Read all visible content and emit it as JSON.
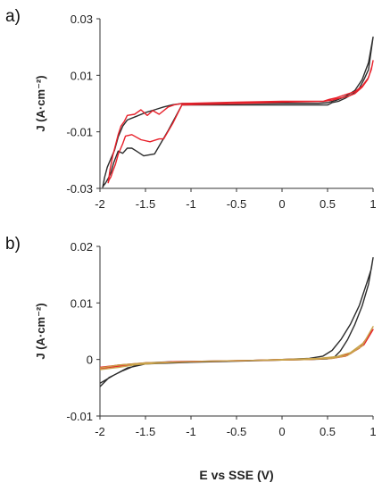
{
  "panels": [
    {
      "label": "a)"
    },
    {
      "label": "b)"
    }
  ],
  "shared_xlabel": "E vs SSE (V)",
  "chart_data": [
    {
      "type": "line",
      "panel": "a)",
      "xlabel": "",
      "ylabel": "J (A·cm⁻²)",
      "xlim": [
        -2,
        1
      ],
      "ylim": [
        -0.03,
        0.03
      ],
      "xticks": [
        -2,
        -1.5,
        -1,
        -0.5,
        0,
        0.5,
        1
      ],
      "xtick_labels": [
        "-2",
        "-1.5",
        "-1",
        "-0.5",
        "0",
        "0.5",
        "1"
      ],
      "yticks": [
        -0.03,
        -0.01,
        0.01,
        0.03
      ],
      "ytick_labels": [
        "-0.03",
        "-0.01",
        "0.01",
        "0.03"
      ],
      "grid": false,
      "colors": {
        "series1": "#2b2b2b",
        "series2": "#e8202a"
      },
      "series": [
        {
          "color": "#2b2b2b",
          "x": [
            -1.1,
            -0.5,
            0,
            0.4,
            0.5,
            0.6,
            0.7,
            0.8,
            0.88,
            0.95,
            1.0,
            0.95,
            0.9,
            0.85,
            0.78,
            0.7,
            0.62,
            0.55,
            0.5,
            0,
            -0.5,
            -1.1,
            -1.25,
            -1.4,
            -1.52,
            -1.6,
            -1.65,
            -1.7,
            -1.75,
            -1.8,
            -1.85,
            -1.88,
            -1.91,
            -1.94,
            -1.96,
            -1.97,
            -1.95,
            -1.92,
            -1.88,
            -1.84,
            -1.8,
            -1.75,
            -1.7,
            -1.6,
            -1.5,
            -1.4,
            -1.3,
            -1.2,
            -1.1
          ],
          "y": [
            0,
            0,
            0.0001,
            0.0001,
            0.0003,
            0.0012,
            0.0026,
            0.0046,
            0.0085,
            0.0145,
            0.0235,
            0.012,
            0.0085,
            0.0055,
            0.0035,
            0.002,
            0.0008,
            0.0003,
            -0.0005,
            -0.0005,
            -0.0005,
            -0.0005,
            -0.0095,
            -0.0178,
            -0.0185,
            -0.0168,
            -0.0158,
            -0.0158,
            -0.0176,
            -0.0168,
            -0.021,
            -0.0245,
            -0.0265,
            -0.0282,
            -0.029,
            -0.0296,
            -0.0262,
            -0.0225,
            -0.0195,
            -0.0165,
            -0.0118,
            -0.008,
            -0.0058,
            -0.0045,
            -0.0032,
            -0.0022,
            -0.0012,
            -0.0004,
            0
          ]
        },
        {
          "color": "#e8202a",
          "x": [
            -1.1,
            -0.5,
            0,
            0.3,
            0.45,
            0.52,
            0.6,
            0.7,
            0.8,
            0.88,
            0.95,
            0.99,
            1.0,
            0.98,
            0.94,
            0.88,
            0.8,
            0.72,
            0.62,
            0.55,
            0.45,
            0,
            -0.5,
            -1.1,
            -1.2,
            -1.3,
            -1.35,
            -1.45,
            -1.55,
            -1.65,
            -1.72,
            -1.75,
            -1.8,
            -1.83,
            -1.86,
            -1.88,
            -1.9,
            -1.91,
            -1.89,
            -1.86,
            -1.83,
            -1.8,
            -1.77,
            -1.73,
            -1.7,
            -1.62,
            -1.55,
            -1.48,
            -1.42,
            -1.35,
            -1.25,
            -1.18,
            -1.1
          ],
          "y": [
            0,
            0.0005,
            0.0008,
            0.0008,
            0.0008,
            0.0015,
            0.0021,
            0.0032,
            0.0042,
            0.0062,
            0.0092,
            0.0135,
            0.0152,
            0.012,
            0.0085,
            0.0058,
            0.0035,
            0.0025,
            0.0018,
            0.0012,
            0.0008,
            0.0005,
            0,
            -0.0005,
            -0.007,
            -0.0125,
            -0.0125,
            -0.0135,
            -0.0128,
            -0.011,
            -0.0115,
            -0.0142,
            -0.018,
            -0.0215,
            -0.024,
            -0.026,
            -0.027,
            -0.028,
            -0.0235,
            -0.0185,
            -0.0148,
            -0.011,
            -0.008,
            -0.0062,
            -0.0042,
            -0.0038,
            -0.0022,
            -0.0042,
            -0.0025,
            -0.0038,
            -0.0012,
            -0.0004,
            0
          ]
        }
      ]
    },
    {
      "type": "line",
      "panel": "b)",
      "xlabel": "E vs SSE (V)",
      "ylabel": "J (A·cm⁻²)",
      "xlim": [
        -2,
        1
      ],
      "ylim": [
        -0.01,
        0.02
      ],
      "xticks": [
        -2,
        -1.5,
        -1,
        -0.5,
        0,
        0.5,
        1
      ],
      "xtick_labels": [
        "-2",
        "-1.5",
        "-1",
        "-0.5",
        "0",
        "0.5",
        "1"
      ],
      "yticks": [
        -0.01,
        0,
        0.01,
        0.02
      ],
      "ytick_labels": [
        "-0.01",
        "0",
        "0.01",
        "0.02"
      ],
      "grid": false,
      "colors": {
        "series1": "#2b2b2b",
        "series2": "#e8202a",
        "series3": "#c8a24a"
      },
      "series": [
        {
          "color": "#2b2b2b",
          "x": [
            -2,
            -1.9,
            -1.75,
            -1.6,
            -1.5,
            -1.2,
            -0.8,
            -0.4,
            0,
            0.3,
            0.45,
            0.55,
            0.65,
            0.75,
            0.85,
            0.93,
            0.98,
            1.0,
            0.95,
            0.88,
            0.8,
            0.72,
            0.64,
            0.58,
            0.5,
            0.3,
            0,
            -0.5,
            -1,
            -1.5,
            -1.7,
            -1.85,
            -2
          ],
          "y": [
            -0.0048,
            -0.0032,
            -0.002,
            -0.001,
            -0.0006,
            -0.0004,
            -0.0003,
            -0.0002,
            0,
            0.0002,
            0.0006,
            0.0016,
            0.0036,
            0.0062,
            0.0096,
            0.0135,
            0.016,
            0.018,
            0.0133,
            0.0095,
            0.0062,
            0.0035,
            0.0015,
            0.0005,
            0.0001,
            0,
            -0.0001,
            -0.0003,
            -0.0005,
            -0.0008,
            -0.0015,
            -0.0028,
            -0.0042
          ]
        },
        {
          "color": "#e8202a",
          "x": [
            -2,
            -1.8,
            -1.6,
            -1.4,
            -1.2,
            -0.8,
            -0.4,
            0,
            0.4,
            0.6,
            0.75,
            0.9,
            1.0,
            0.85,
            0.7,
            0.55,
            0.3,
            0,
            -0.5,
            -1,
            -1.5,
            -1.8,
            -2
          ],
          "y": [
            -0.0016,
            -0.0012,
            -0.0008,
            -0.0006,
            -0.0004,
            -0.0003,
            -0.0002,
            0,
            0.0001,
            0.0004,
            0.001,
            0.0026,
            0.0053,
            0.002,
            0.0006,
            0.0002,
            0,
            -0.0001,
            -0.0002,
            -0.0004,
            -0.0006,
            -0.001,
            -0.0014
          ]
        },
        {
          "color": "#c8a24a",
          "x": [
            -2,
            -1.8,
            -1.6,
            -1.4,
            -1.2,
            -0.8,
            -0.4,
            0,
            0.4,
            0.6,
            0.75,
            0.9,
            1.0,
            0.88,
            0.72,
            0.55,
            0.3,
            0,
            -0.5,
            -1,
            -1.5,
            -1.8,
            -2
          ],
          "y": [
            -0.0018,
            -0.0014,
            -0.0009,
            -0.0007,
            -0.0005,
            -0.0003,
            -0.0002,
            0,
            0.0002,
            0.0005,
            0.0012,
            0.003,
            0.0058,
            0.0024,
            0.0007,
            0.0002,
            0,
            -0.0001,
            -0.0002,
            -0.0004,
            -0.0006,
            -0.001,
            -0.0015
          ]
        }
      ]
    }
  ]
}
